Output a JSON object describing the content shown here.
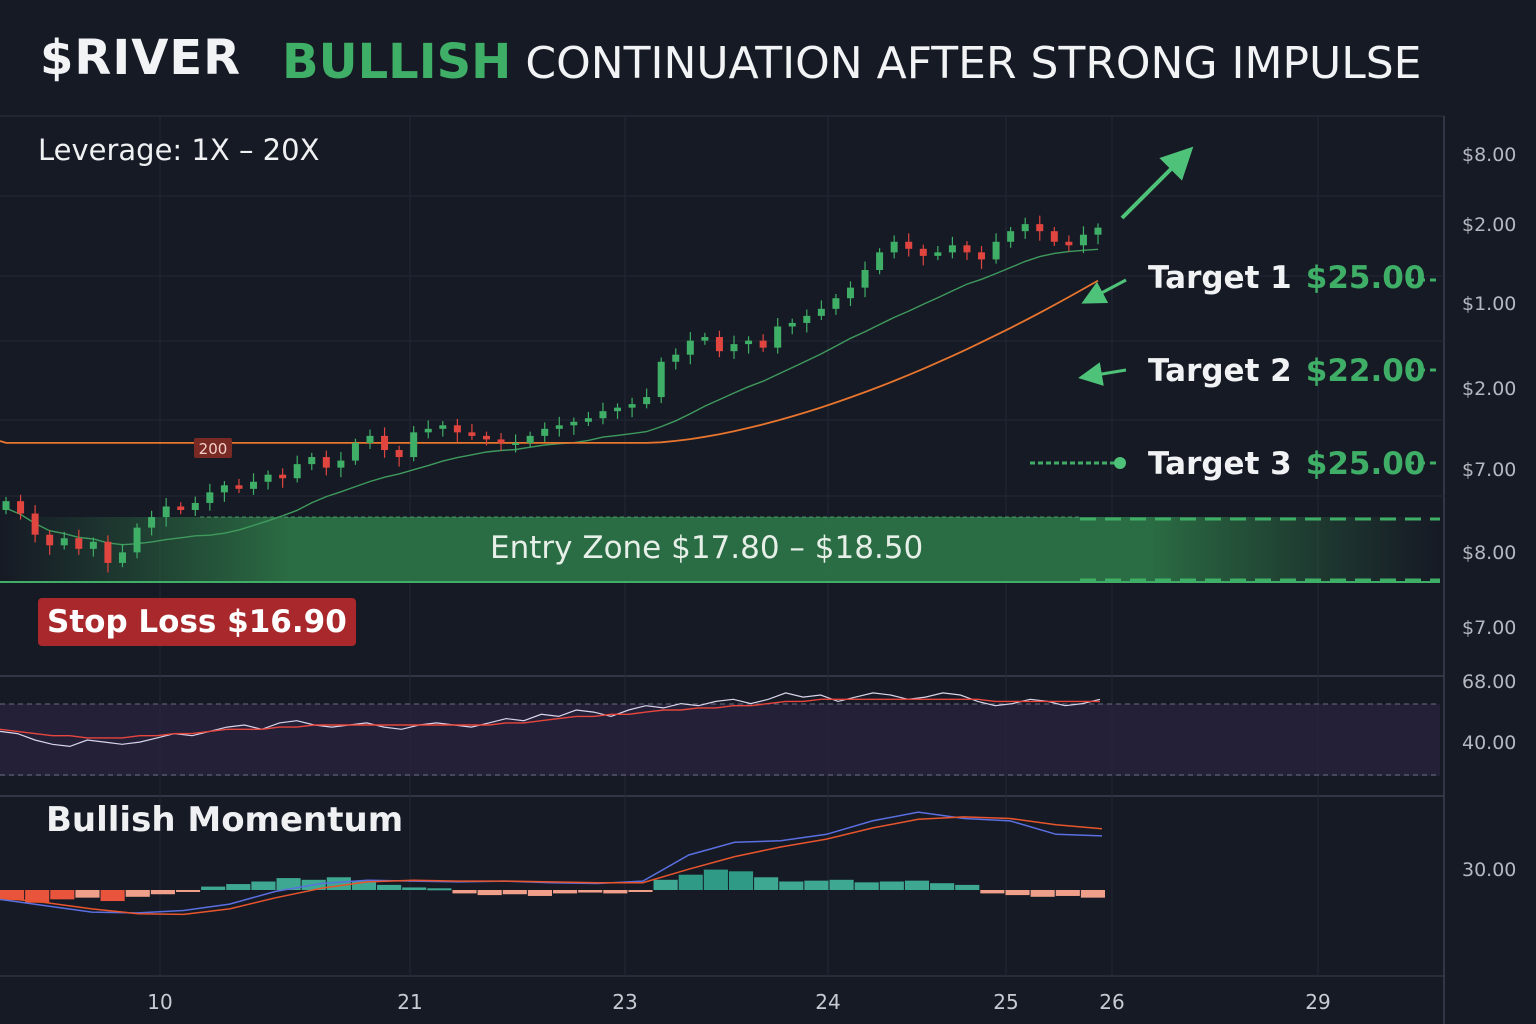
{
  "header": {
    "ticker": "$RIVER",
    "headline_highlight": "BULLISH",
    "headline_rest": "CONTINUATION AFTER STRONG IMPULSE"
  },
  "leverage": "Leverage: 1X – 20X",
  "targets": [
    {
      "label": "Target 1",
      "value": "$25.00"
    },
    {
      "label": "Target 2",
      "value": "$22.00"
    },
    {
      "label": "Target 3",
      "value": "$25.00"
    }
  ],
  "entry_zone": "Entry Zone $17.80 – $18.50",
  "stop_loss": "Stop Loss $16.90",
  "momentum_label": "Bullish Momentum",
  "ma_badge": "200",
  "colors": {
    "background": "#161a25",
    "up": "#3fae66",
    "down": "#e0453f",
    "ma_fast": "#3f9a5d",
    "ma_slow": "#e8752d",
    "stop": "#a8282c",
    "macd_line": "#5a6fe0",
    "signal_line": "#e8552d"
  },
  "chart_data": [
    {
      "type": "candlestick",
      "price_axis_labels": [
        "$8.00",
        "$2.00",
        "$1.00",
        "$2.00",
        "$7.00",
        "$8.00",
        "$7.00"
      ],
      "x_tick_labels": [
        "10",
        "21",
        "23",
        "24",
        "25",
        "26",
        "29"
      ],
      "close": [
        18.35,
        18.0,
        17.4,
        17.1,
        17.3,
        17.0,
        17.2,
        16.6,
        16.9,
        17.6,
        17.9,
        18.2,
        18.1,
        18.3,
        18.6,
        18.8,
        18.7,
        18.9,
        19.1,
        19.0,
        19.4,
        19.6,
        19.3,
        19.5,
        20.0,
        20.2,
        19.8,
        19.6,
        20.3,
        20.4,
        20.5,
        20.3,
        20.2,
        20.1,
        20.0,
        20.0,
        20.2,
        20.4,
        20.5,
        20.6,
        20.7,
        20.9,
        21.0,
        21.1,
        21.3,
        22.3,
        22.5,
        22.9,
        23.0,
        22.6,
        22.8,
        22.9,
        22.7,
        23.3,
        23.4,
        23.6,
        23.8,
        24.1,
        24.4,
        24.9,
        25.4,
        25.7,
        25.5,
        25.3,
        25.4,
        25.6,
        25.4,
        25.2,
        25.7,
        26.0,
        26.2,
        26.0,
        25.7,
        25.6,
        25.9,
        26.1
      ],
      "open": [
        18.1,
        18.35,
        18.0,
        17.4,
        17.1,
        17.3,
        17.0,
        17.2,
        16.6,
        16.9,
        17.6,
        17.9,
        18.2,
        18.1,
        18.3,
        18.6,
        18.8,
        18.7,
        18.9,
        19.1,
        19.0,
        19.4,
        19.6,
        19.3,
        19.5,
        20.0,
        20.2,
        19.8,
        19.6,
        20.3,
        20.4,
        20.5,
        20.3,
        20.2,
        20.1,
        20.0,
        20.0,
        20.2,
        20.4,
        20.5,
        20.6,
        20.7,
        20.9,
        21.0,
        21.1,
        21.3,
        22.3,
        22.5,
        22.9,
        23.0,
        22.6,
        22.8,
        22.9,
        22.7,
        23.3,
        23.4,
        23.6,
        23.8,
        24.1,
        24.4,
        24.9,
        25.4,
        25.7,
        25.5,
        25.3,
        25.4,
        25.6,
        25.4,
        25.2,
        25.7,
        26.0,
        26.2,
        26.0,
        25.7,
        25.6,
        25.9
      ],
      "entry_zone": [
        17.8,
        18.5
      ],
      "stop_loss": 16.9,
      "targets": [
        25.0,
        22.0,
        25.0
      ],
      "moving_averages": [
        "fast",
        "200"
      ]
    },
    {
      "type": "line",
      "name": "rsi",
      "axis_labels": [
        "68.00",
        "40.00"
      ],
      "values": [
        48,
        47,
        44,
        42,
        41,
        44,
        43,
        42,
        43,
        45,
        47,
        46,
        48,
        50,
        51,
        49,
        52,
        53,
        51,
        50,
        51,
        52,
        50,
        49,
        51,
        52,
        51,
        50,
        52,
        54,
        53,
        56,
        55,
        58,
        57,
        55,
        58,
        60,
        59,
        61,
        60,
        62,
        63,
        61,
        63,
        66,
        64,
        65,
        62,
        64,
        66,
        65,
        63,
        64,
        66,
        65,
        62,
        60,
        61,
        63,
        62,
        60,
        61,
        63
      ],
      "signal": [
        49,
        48,
        47,
        46,
        46,
        45,
        45,
        45,
        46,
        46,
        47,
        47,
        48,
        49,
        49,
        49,
        50,
        50,
        51,
        51,
        51,
        51,
        51,
        51,
        51,
        51,
        51,
        51,
        51,
        52,
        52,
        53,
        54,
        55,
        55,
        56,
        56,
        57,
        58,
        58,
        59,
        59,
        60,
        60,
        61,
        62,
        62,
        63,
        63,
        63,
        63,
        63,
        63,
        63,
        63,
        63,
        63,
        62,
        62,
        62,
        62,
        62,
        62,
        62
      ]
    },
    {
      "type": "bar",
      "name": "macd",
      "axis_labels": [
        "30.00"
      ],
      "histogram": [
        -1.2,
        -1.5,
        -1.1,
        -0.9,
        -1.3,
        -0.8,
        -0.5,
        -0.2,
        0.4,
        0.7,
        1.0,
        1.4,
        1.2,
        1.5,
        1.1,
        0.6,
        0.3,
        0.2,
        -0.4,
        -0.6,
        -0.5,
        -0.7,
        -0.4,
        -0.3,
        -0.4,
        -0.2,
        1.2,
        1.8,
        2.4,
        2.2,
        1.5,
        1.0,
        1.1,
        1.2,
        0.9,
        1.0,
        1.1,
        0.8,
        0.6,
        -0.4,
        -0.6,
        -0.8,
        -0.7,
        -0.9
      ],
      "macd_line": [
        -0.4,
        -1.2,
        -2.0,
        -2.1,
        -1.8,
        -1.0,
        0.6,
        1.6,
        2.0,
        1.9,
        1.8,
        1.9,
        1.7,
        1.6,
        1.9,
        5.2,
        6.8,
        7.0,
        7.8,
        9.5,
        10.6,
        9.8,
        9.5,
        7.8,
        7.6
      ],
      "signal_line": [
        -0.2,
        -0.8,
        -1.6,
        -2.2,
        -2.3,
        -1.6,
        -0.2,
        1.0,
        1.8,
        2.0,
        1.9,
        1.9,
        1.8,
        1.7,
        1.7,
        3.4,
        5.0,
        6.2,
        7.2,
        8.6,
        9.7,
        10.0,
        9.8,
        9.0,
        8.5
      ]
    }
  ]
}
